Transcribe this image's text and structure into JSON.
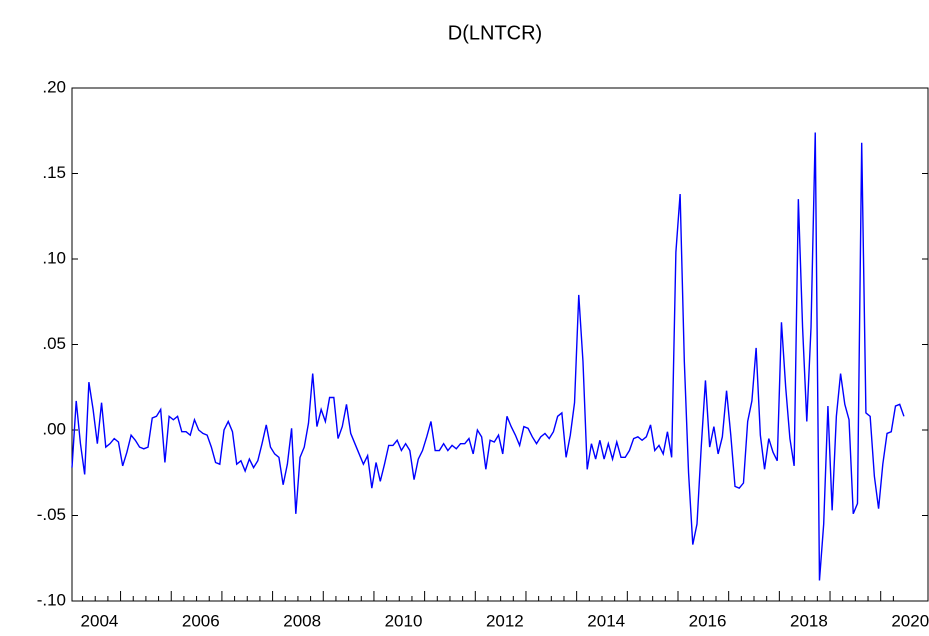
{
  "chart_data": {
    "type": "line",
    "title": "D(LNTCR)",
    "categories": [
      "2004",
      null,
      null,
      null,
      null,
      null,
      null,
      null,
      null,
      null,
      null,
      null,
      null,
      null,
      null,
      null,
      null,
      null,
      null,
      null,
      null,
      null,
      null,
      null,
      "2006",
      null,
      null,
      null,
      null,
      null,
      null,
      null,
      null,
      null,
      null,
      null,
      null,
      null,
      null,
      null,
      null,
      null,
      null,
      null,
      null,
      null,
      null,
      null,
      "2008",
      null,
      null,
      null,
      null,
      null,
      null,
      null,
      null,
      null,
      null,
      null,
      null,
      null,
      null,
      null,
      null,
      null,
      null,
      null,
      null,
      null,
      null,
      null,
      "2010",
      null,
      null,
      null,
      null,
      null,
      null,
      null,
      null,
      null,
      null,
      null,
      null,
      null,
      null,
      null,
      null,
      null,
      null,
      null,
      null,
      null,
      null,
      null,
      "2012",
      null,
      null,
      null,
      null,
      null,
      null,
      null,
      null,
      null,
      null,
      null,
      null,
      null,
      null,
      null,
      null,
      null,
      null,
      null,
      null,
      null,
      null,
      null,
      "2014",
      null,
      null,
      null,
      null,
      null,
      null,
      null,
      null,
      null,
      null,
      null,
      null,
      null,
      null,
      null,
      null,
      null,
      null,
      null,
      null,
      null,
      null,
      null,
      "2016",
      null,
      null,
      null,
      null,
      null,
      null,
      null,
      null,
      null,
      null,
      null,
      null,
      null,
      null,
      null,
      null,
      null,
      null,
      null,
      null,
      null,
      null,
      null,
      "2018",
      null,
      null,
      null,
      null,
      null,
      null,
      null,
      null,
      null,
      null,
      null,
      null,
      null,
      null,
      null,
      null,
      null,
      null,
      null,
      null,
      null,
      null,
      null,
      "2020",
      null,
      null,
      null,
      null,
      null
    ],
    "values": [
      -0.022,
      0.017,
      -0.008,
      -0.026,
      0.028,
      0.012,
      -0.008,
      0.016,
      -0.01,
      -0.008,
      -0.005,
      -0.007,
      -0.021,
      -0.013,
      -0.003,
      -0.006,
      -0.01,
      -0.011,
      -0.01,
      0.007,
      0.008,
      0.012,
      -0.019,
      0.008,
      0.006,
      0.008,
      -0.001,
      -0.001,
      -0.003,
      0.006,
      0.0,
      -0.002,
      -0.003,
      -0.01,
      -0.019,
      -0.02,
      0.0,
      0.005,
      -0.001,
      -0.02,
      -0.018,
      -0.024,
      -0.017,
      -0.022,
      -0.018,
      -0.008,
      0.003,
      -0.01,
      -0.014,
      -0.016,
      -0.032,
      -0.02,
      0.001,
      -0.049,
      -0.016,
      -0.01,
      0.004,
      0.033,
      0.002,
      0.012,
      0.005,
      0.019,
      0.019,
      -0.005,
      0.002,
      0.015,
      -0.002,
      -0.008,
      -0.014,
      -0.02,
      -0.015,
      -0.034,
      -0.019,
      -0.03,
      -0.02,
      -0.009,
      -0.009,
      -0.006,
      -0.012,
      -0.008,
      -0.012,
      -0.029,
      -0.017,
      -0.012,
      -0.004,
      0.005,
      -0.012,
      -0.012,
      -0.008,
      -0.012,
      -0.009,
      -0.011,
      -0.008,
      -0.008,
      -0.005,
      -0.014,
      0.0,
      -0.004,
      -0.023,
      -0.006,
      -0.007,
      -0.003,
      -0.014,
      0.008,
      0.002,
      -0.003,
      -0.009,
      0.002,
      0.001,
      -0.004,
      -0.008,
      -0.004,
      -0.002,
      -0.005,
      -0.001,
      0.008,
      0.01,
      -0.016,
      -0.003,
      0.016,
      0.079,
      0.04,
      -0.023,
      -0.008,
      -0.017,
      -0.006,
      -0.017,
      -0.008,
      -0.017,
      -0.007,
      -0.016,
      -0.016,
      -0.012,
      -0.005,
      -0.004,
      -0.006,
      -0.004,
      0.003,
      -0.012,
      -0.009,
      -0.014,
      -0.001,
      -0.016,
      0.104,
      0.138,
      0.04,
      -0.025,
      -0.067,
      -0.055,
      -0.01,
      0.029,
      -0.01,
      0.002,
      -0.014,
      -0.004,
      0.023,
      -0.003,
      -0.033,
      -0.034,
      -0.031,
      0.005,
      0.017,
      0.048,
      -0.003,
      -0.023,
      -0.005,
      -0.013,
      -0.018,
      0.063,
      0.025,
      -0.005,
      -0.021,
      0.135,
      0.06,
      0.005,
      0.06,
      0.174,
      -0.088,
      -0.055,
      0.014,
      -0.047,
      0.008,
      0.033,
      0.015,
      0.006,
      -0.049,
      -0.043,
      0.168,
      0.01,
      0.008,
      -0.027,
      -0.046,
      -0.02,
      -0.002,
      -0.001,
      0.014,
      0.015,
      0.008
    ],
    "color": "#0000ff",
    "ylim": [
      -0.1,
      0.2
    ],
    "yticks": [
      {
        "value": -0.1,
        "label": "-.10"
      },
      {
        "value": -0.05,
        "label": "-.05"
      },
      {
        "value": 0,
        "label": ".00"
      },
      {
        "value": 0.05,
        "label": ".05"
      },
      {
        "value": 0.1,
        "label": ".10"
      },
      {
        "value": 0.15,
        "label": ".15"
      },
      {
        "value": 0.2,
        "label": ".20"
      }
    ],
    "grid": false
  }
}
